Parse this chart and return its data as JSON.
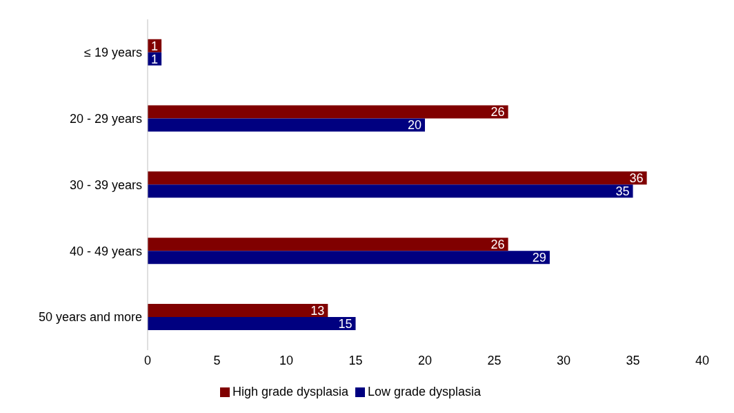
{
  "chart_data": {
    "type": "bar",
    "orientation": "horizontal",
    "categories": [
      "≤ 19 years",
      "20 - 29 years",
      "30 - 39 years",
      "40 - 49 years",
      "50 years and more"
    ],
    "series": [
      {
        "name": "High grade dysplasia",
        "color": "#800000",
        "values": [
          1,
          26,
          36,
          26,
          13
        ]
      },
      {
        "name": "Low grade dysplasia",
        "color": "#000080",
        "values": [
          1,
          20,
          35,
          29,
          15
        ]
      }
    ],
    "xlim": [
      0,
      40
    ],
    "xticks": [
      0,
      5,
      10,
      15,
      20,
      25,
      30,
      35,
      40
    ],
    "data_labels": true,
    "legend": "bottom",
    "grid": false
  }
}
